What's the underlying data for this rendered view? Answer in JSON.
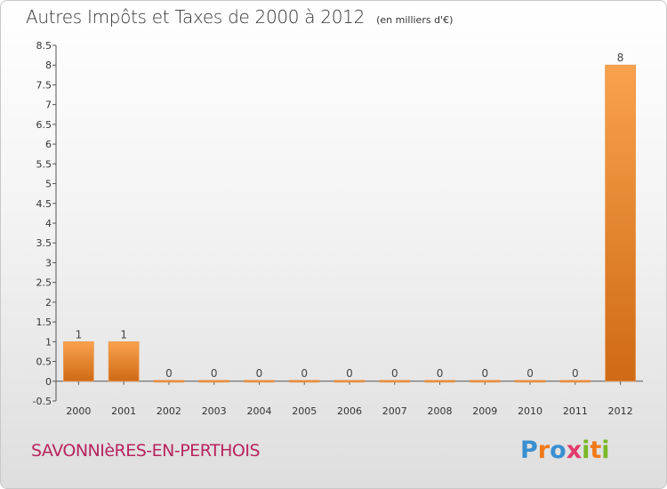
{
  "header": {
    "title": "Autres Impôts et Taxes de 2000 à 2012",
    "unit": "(en milliers d'€)"
  },
  "footer": {
    "location": "SAVONNIèRES-EN-PERTHOIS",
    "logo_text": "Proxiti"
  },
  "colors": {
    "bar_light": "#f9a24c",
    "bar_dark": "#cf6a16",
    "title": "#333333",
    "location": "#b9245e"
  },
  "chart_data": {
    "type": "bar",
    "title": "Autres Impôts et Taxes de 2000 à 2012",
    "subtitle": "(en milliers d'€)",
    "categories": [
      "2000",
      "2001",
      "2002",
      "2003",
      "2004",
      "2005",
      "2006",
      "2007",
      "2008",
      "2009",
      "2010",
      "2011",
      "2012"
    ],
    "values": [
      1,
      1,
      0,
      0,
      0,
      0,
      0,
      0,
      0,
      0,
      0,
      0,
      8
    ],
    "data_labels": [
      "1",
      "1",
      "0",
      "0",
      "0",
      "0",
      "0",
      "0",
      "0",
      "0",
      "0",
      "0",
      "8"
    ],
    "ylim": [
      -0.5,
      8.5
    ],
    "yticks": [
      "-0.5",
      "0",
      "0.5",
      "1",
      "1.5",
      "2",
      "2.5",
      "3",
      "3.5",
      "4",
      "4.5",
      "5",
      "5.5",
      "6",
      "6.5",
      "7",
      "7.5",
      "8",
      "8.5"
    ],
    "ytick_values": [
      -0.5,
      0,
      0.5,
      1,
      1.5,
      2,
      2.5,
      3,
      3.5,
      4,
      4.5,
      5,
      5.5,
      6,
      6.5,
      7,
      7.5,
      8,
      8.5
    ],
    "xlabel": "",
    "ylabel": "",
    "grid": false,
    "legend": "none"
  }
}
